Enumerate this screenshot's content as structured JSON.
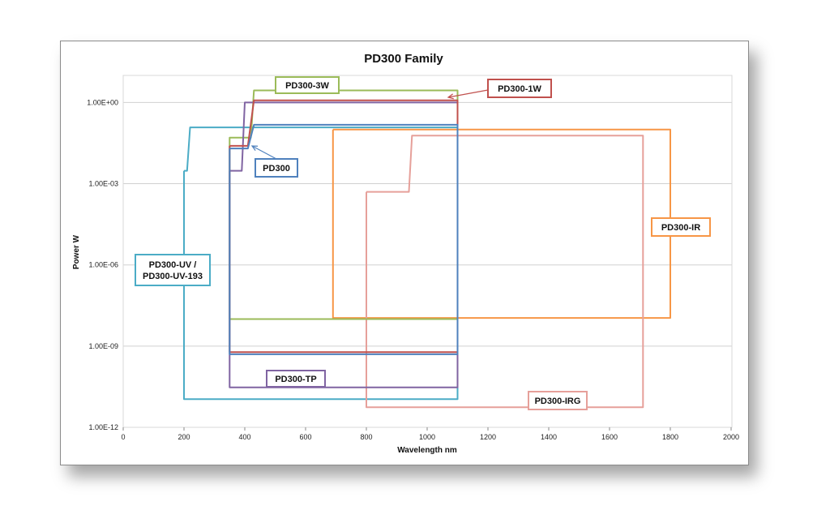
{
  "chart_data": {
    "type": "line",
    "title": "PD300 Family",
    "xlabel": "Wavelength nm",
    "ylabel": "Power W",
    "xlim": [
      0,
      2000
    ],
    "ylim_exponent": [
      -12,
      1
    ],
    "y_scale": "log",
    "grid": true,
    "x_ticks": [
      "0",
      "200",
      "400",
      "600",
      "800",
      "1000",
      "1200",
      "1400",
      "1600",
      "1800",
      "2000"
    ],
    "y_ticks": [
      "1.00E-12",
      "1.00E-09",
      "1.00E-06",
      "1.00E-03",
      "1.00E+00"
    ],
    "series": [
      {
        "color": "#4bacc6",
        "upper": [
          [
            200,
            0.003
          ],
          [
            210,
            0.003
          ],
          [
            220,
            0.12
          ],
          [
            430,
            0.12
          ],
          [
            1100,
            0.12
          ]
        ],
        "lower": [
          [
            200,
            1.1e-11
          ],
          [
            1100,
            1.1e-11
          ]
        ]
      },
      {
        "color": "#f79646",
        "upper": [
          [
            690,
            0.1
          ],
          [
            1800,
            0.1
          ]
        ],
        "lower": [
          [
            690,
            1.1e-08
          ],
          [
            1800,
            1.1e-08
          ]
        ]
      },
      {
        "color": "#e6a09a",
        "upper": [
          [
            800,
            0.0005
          ],
          [
            940,
            0.0005
          ],
          [
            950,
            0.06
          ],
          [
            1710,
            0.06
          ]
        ],
        "lower": [
          [
            800,
            5.5e-12
          ],
          [
            1710,
            5.5e-12
          ]
        ]
      },
      {
        "color": "#9bbb59",
        "upper": [
          [
            350,
            0.003
          ],
          [
            350,
            0.05
          ],
          [
            420,
            0.05
          ],
          [
            430,
            2.8
          ],
          [
            1100,
            2.8
          ]
        ],
        "lower": [
          [
            350,
            1e-08
          ],
          [
            1100,
            1e-08
          ]
        ]
      },
      {
        "color": "#8064a2",
        "upper": [
          [
            350,
            0.003
          ],
          [
            390,
            0.003
          ],
          [
            400,
            1
          ],
          [
            1100,
            1
          ]
        ],
        "lower": [
          [
            350,
            3e-11
          ],
          [
            1100,
            3e-11
          ]
        ]
      },
      {
        "color": "#c0504d",
        "upper": [
          [
            350,
            0.025
          ],
          [
            410,
            0.025
          ],
          [
            430,
            1.2
          ],
          [
            1100,
            1.2
          ]
        ],
        "lower": [
          [
            350,
            6e-10
          ],
          [
            1100,
            6e-10
          ]
        ]
      },
      {
        "color": "#4f81bd",
        "upper": [
          [
            350,
            0.02
          ],
          [
            410,
            0.02
          ],
          [
            430,
            0.15
          ],
          [
            1100,
            0.15
          ]
        ],
        "lower": [
          [
            350,
            5e-10
          ],
          [
            1100,
            5e-10
          ]
        ]
      }
    ],
    "callouts": [
      {
        "text": [
          "PD300-3W"
        ],
        "color": "#9bbb59",
        "arrow": false
      },
      {
        "text": [
          "PD300-1W"
        ],
        "color": "#c0504d",
        "arrow": true
      },
      {
        "text": [
          "PD300"
        ],
        "color": "#4f81bd",
        "arrow": true
      },
      {
        "text": [
          "PD300-IR"
        ],
        "color": "#f79646",
        "arrow": false
      },
      {
        "text": [
          "PD300-UV /",
          "PD300-UV-193"
        ],
        "color": "#4bacc6",
        "arrow": false
      },
      {
        "text": [
          "PD300-TP"
        ],
        "color": "#8064a2",
        "arrow": false
      },
      {
        "text": [
          "PD300-IRG"
        ],
        "color": "#e6a09a",
        "arrow": false
      }
    ]
  }
}
